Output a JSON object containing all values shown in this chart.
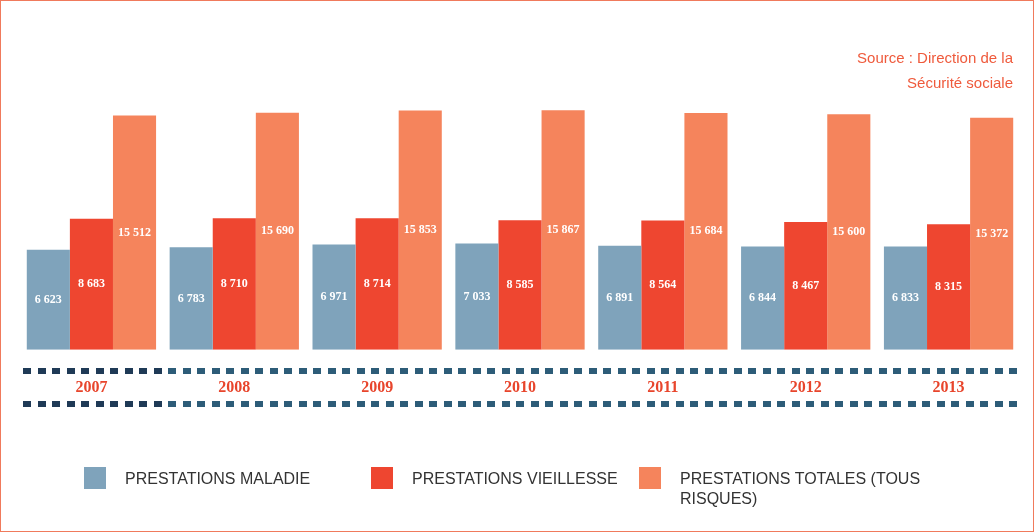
{
  "chart_data": {
    "type": "bar",
    "annotations": [
      "Source : Direction de la Sécurité sociale"
    ],
    "categories": [
      "2007",
      "2008",
      "2009",
      "2010",
      "2011",
      "2012",
      "2013"
    ],
    "series": [
      {
        "name": "PRESTATIONS MALADIE",
        "color": "#7fa3bb",
        "values": [
          6623,
          6783,
          6971,
          7033,
          6891,
          6844,
          6833
        ],
        "value_labels": [
          "6 623",
          "6 783",
          "6 971",
          "7 033",
          "6 891",
          "6 844",
          "6 833"
        ]
      },
      {
        "name": "PRESTATIONS VIEILLESSE",
        "color": "#ee4630",
        "values": [
          8683,
          8710,
          8714,
          8585,
          8564,
          8467,
          8315
        ],
        "value_labels": [
          "8 683",
          "8 710",
          "8 714",
          "8 585",
          "8 564",
          "8 467",
          "8 315"
        ]
      },
      {
        "name": "PRESTATIONS TOTALES (TOUS RISQUES)",
        "color": "#f5845c",
        "values": [
          15512,
          15690,
          15853,
          15867,
          15684,
          15600,
          15372
        ],
        "value_labels": [
          "15 512",
          "15 690",
          "15 853",
          "15 867",
          "15 684",
          "15 600",
          "15 372"
        ]
      }
    ],
    "legend": "bottom",
    "grid": false
  }
}
